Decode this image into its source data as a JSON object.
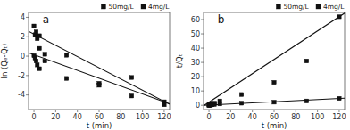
{
  "chart_data": [
    {
      "type": "scatter",
      "title": "a",
      "x_label": "t (min)",
      "y_label": "ln (Qₑ-Qₜ)",
      "xlim": [
        -5,
        125
      ],
      "ylim": [
        -5.5,
        4.5
      ],
      "xticks": [
        0,
        20,
        40,
        60,
        80,
        100,
        120
      ],
      "yticks": [
        -4,
        -2,
        0,
        2,
        4
      ],
      "grid": false,
      "legend": "upper right",
      "series": [
        {
          "name": "50mg/L",
          "color": "#111111",
          "marker": "square",
          "x": [
            0,
            1,
            2,
            3,
            5,
            5,
            10,
            30,
            60,
            90,
            120
          ],
          "values": [
            3.1,
            2.2,
            2.5,
            1.8,
            0.8,
            2.1,
            0.2,
            0.1,
            -2.8,
            -4.1,
            -4.7
          ],
          "line_x": [
            -5,
            125
          ],
          "line_values": [
            2.55,
            -4.95
          ]
        },
        {
          "name": "4mg/L",
          "color": "#111111",
          "marker": "square",
          "x": [
            0,
            1,
            2,
            3,
            5,
            10,
            30,
            60,
            90,
            120
          ],
          "values": [
            0.05,
            -0.2,
            -0.5,
            -0.9,
            -1.3,
            -0.5,
            -2.3,
            -3.0,
            -2.2,
            -5.0
          ],
          "line_x": [
            -5,
            125
          ],
          "line_values": [
            0.35,
            -4.9
          ]
        }
      ]
    },
    {
      "type": "scatter",
      "title": "b",
      "x_label": "t (min)",
      "y_label": "t/Qₜ",
      "xlim": [
        -5,
        125
      ],
      "ylim": [
        -3,
        65
      ],
      "xticks": [
        0,
        20,
        40,
        60,
        80,
        100,
        120
      ],
      "yticks": [
        0,
        10,
        20,
        30,
        40,
        50,
        60
      ],
      "grid": false,
      "legend": "upper right",
      "series": [
        {
          "name": "50mg/L",
          "color": "#111111",
          "marker": "square",
          "x": [
            0,
            1,
            2,
            3,
            5,
            10,
            30,
            60,
            90,
            120
          ],
          "values": [
            0.0,
            0.3,
            0.6,
            1.0,
            1.5,
            3.0,
            7.5,
            16.0,
            31.0,
            62.0
          ],
          "line_x": [
            -5,
            125
          ],
          "line_values": [
            -0.3,
            64.5
          ]
        },
        {
          "name": "4mg/L",
          "color": "#111111",
          "marker": "square",
          "x": [
            0,
            1,
            2,
            3,
            5,
            10,
            30,
            60,
            90,
            120
          ],
          "values": [
            0.0,
            0.15,
            0.25,
            0.4,
            0.6,
            1.0,
            1.5,
            2.2,
            3.0,
            4.8
          ],
          "line_x": [
            -5,
            125
          ],
          "line_values": [
            0.0,
            5.0
          ]
        }
      ]
    }
  ]
}
